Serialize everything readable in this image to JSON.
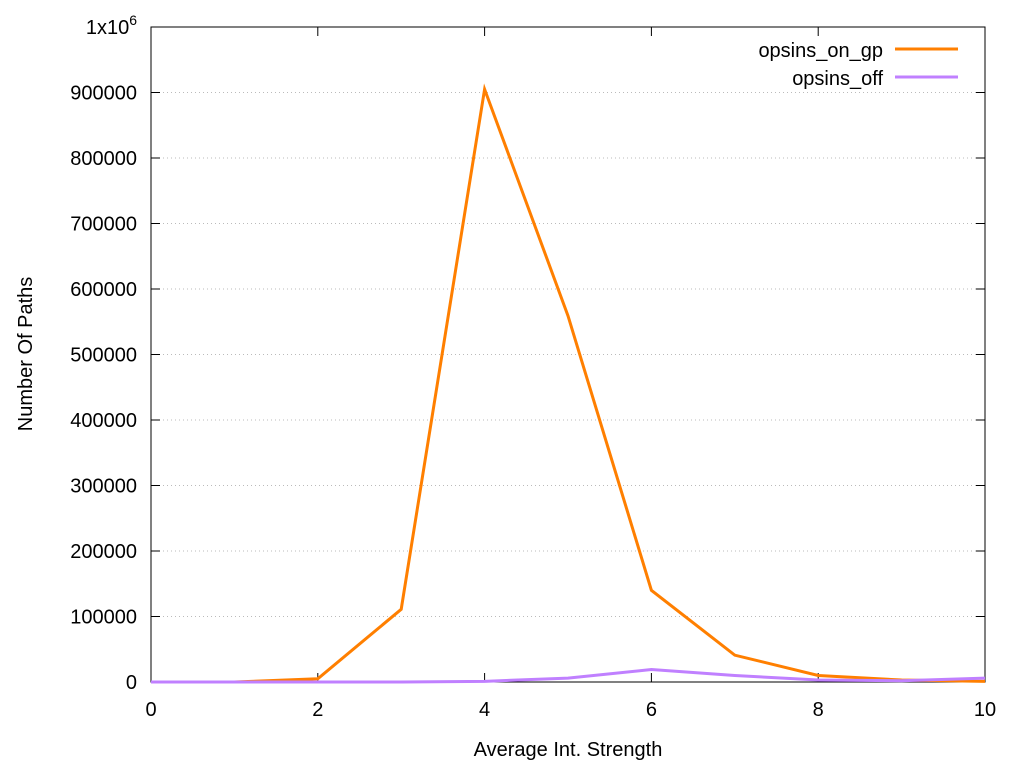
{
  "chart_data": {
    "type": "line",
    "title": "",
    "xlabel": "Average Int. Strength",
    "ylabel": "Number Of Paths",
    "xlim": [
      0,
      10
    ],
    "ylim": [
      0,
      1000000
    ],
    "xticks": [
      "0",
      "2",
      "4",
      "6",
      "8",
      "10"
    ],
    "yticks": [
      "0",
      "100000",
      "200000",
      "300000",
      "400000",
      "500000",
      "600000",
      "700000",
      "800000",
      "900000"
    ],
    "ytick_top": {
      "base": "1x10",
      "exp": "6"
    },
    "grid": "horizontal dotted",
    "legend_position": "top-right",
    "x": [
      0,
      1,
      2,
      3,
      4,
      5,
      6,
      7,
      8,
      9,
      10
    ],
    "series": [
      {
        "name": "opsins_on_gp",
        "color": "#ff7f00",
        "values": [
          0,
          0,
          5000,
          111000,
          905000,
          559000,
          140000,
          41000,
          10000,
          3000,
          1000
        ]
      },
      {
        "name": "opsins_off",
        "color": "#c080ff",
        "values": [
          0,
          0,
          0,
          0,
          1000,
          6000,
          19000,
          10000,
          3000,
          2000,
          6000
        ]
      }
    ]
  }
}
